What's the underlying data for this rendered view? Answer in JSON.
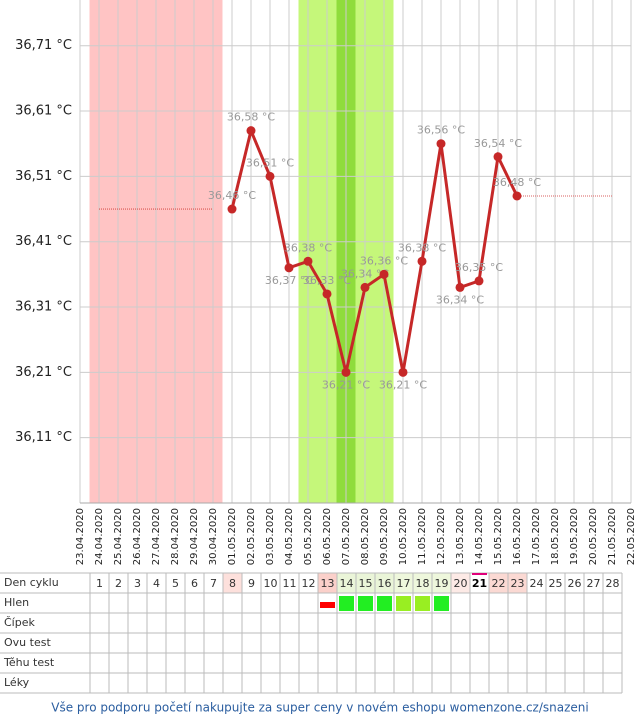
{
  "chart_data": {
    "type": "line",
    "x": [
      "23.04.2020",
      "24.04.2020",
      "25.04.2020",
      "26.04.2020",
      "27.04.2020",
      "28.04.2020",
      "29.04.2020",
      "30.04.2020",
      "01.05.2020",
      "02.05.2020",
      "03.05.2020",
      "04.05.2020",
      "05.05.2020",
      "06.05.2020",
      "07.05.2020",
      "08.05.2020",
      "09.05.2020",
      "10.05.2020",
      "11.05.2020",
      "12.05.2020",
      "13.05.2020",
      "14.05.2020",
      "15.05.2020",
      "16.05.2020",
      "17.05.2020",
      "18.05.2020",
      "19.05.2020",
      "20.05.2020",
      "21.05.2020",
      "22.05.2020"
    ],
    "series": [
      {
        "color": "#c62828",
        "values": [
          null,
          null,
          null,
          null,
          null,
          null,
          null,
          null,
          36.46,
          36.58,
          36.51,
          36.37,
          36.38,
          36.33,
          36.21,
          36.34,
          36.36,
          36.21,
          36.38,
          36.56,
          36.34,
          36.35,
          36.54,
          36.48,
          null,
          null,
          null,
          null,
          null,
          null
        ],
        "value_labels": [
          null,
          null,
          null,
          null,
          null,
          null,
          null,
          null,
          "36,46 °C",
          "36,58 °C",
          "36,51 °C",
          "36,37 °C",
          "36,38 °C",
          "36,33 °C",
          "36,21 °C",
          "36,34 °C",
          "36,36 °C",
          "36,21 °C",
          "36,38 °C",
          "36,56 °C",
          "36,34 °C",
          "36,35 °C",
          "36,54 °C",
          "36,48 °C",
          null,
          null,
          null,
          null,
          null,
          null
        ]
      },
      {
        "color": "#d9534f",
        "values": [
          null,
          36.46,
          36.46,
          36.46,
          36.46,
          36.46,
          36.46,
          36.46,
          null,
          null,
          null,
          null,
          null,
          null,
          null,
          null,
          null,
          null,
          null,
          null,
          null,
          null,
          null,
          null,
          null,
          null,
          null,
          null,
          null,
          null
        ]
      },
      {
        "color": "#e08080",
        "values": [
          null,
          null,
          null,
          null,
          null,
          null,
          null,
          null,
          null,
          null,
          null,
          null,
          null,
          null,
          null,
          null,
          null,
          null,
          null,
          null,
          null,
          null,
          null,
          36.48,
          36.48,
          36.48,
          36.48,
          36.48,
          36.48,
          null
        ]
      }
    ],
    "bands": [
      {
        "from": "24.04.2020",
        "to": "30.04.2020",
        "color": "#ffc4c4"
      },
      {
        "from": "05.05.2020",
        "to": "09.05.2020",
        "color": "#c5f77a"
      },
      {
        "from": "07.05.2020",
        "to": "07.05.2020",
        "color": "#8fdc3c"
      }
    ],
    "ylim": [
      36.01,
      36.78
    ],
    "yticks": [
      {
        "value": 36.11,
        "label": "36,11 °C"
      },
      {
        "value": 36.21,
        "label": "36,21 °C"
      },
      {
        "value": 36.31,
        "label": "36,31 °C"
      },
      {
        "value": 36.41,
        "label": "36,41 °C"
      },
      {
        "value": 36.51,
        "label": "36,51 °C"
      },
      {
        "value": 36.61,
        "label": "36,61 °C"
      },
      {
        "value": 36.71,
        "label": "36,71 °C"
      }
    ],
    "grid": true
  },
  "table": {
    "row_labels": [
      "Den cyklu",
      "Hlen",
      "Čípek",
      "Ovu test",
      "Těhu test",
      "Léky"
    ],
    "days": [
      1,
      2,
      3,
      4,
      5,
      6,
      7,
      8,
      9,
      10,
      11,
      12,
      13,
      14,
      15,
      16,
      17,
      18,
      19,
      20,
      21,
      22,
      23,
      24,
      25,
      26,
      27,
      28
    ],
    "day_shade": [
      null,
      null,
      null,
      null,
      null,
      null,
      null,
      "#fde0dc",
      null,
      null,
      null,
      null,
      "#fbd0ca",
      "#eaf5d8",
      "#eaf5d8",
      "#eaf5d8",
      "#eef7dc",
      "#eef7dc",
      "#eef7dc",
      "#fdeae6",
      null,
      "#fbd9d3",
      "#fbd9d3",
      null,
      null,
      null,
      null,
      null
    ],
    "current_day": 21,
    "hlen": [
      null,
      null,
      null,
      null,
      null,
      null,
      null,
      null,
      null,
      null,
      null,
      null,
      {
        "color": "#ff0000",
        "shape": "bar"
      },
      {
        "color": "#22ee22",
        "shape": "square"
      },
      {
        "color": "#22ee22",
        "shape": "square"
      },
      {
        "color": "#22ee22",
        "shape": "square"
      },
      {
        "color": "#99ee22",
        "shape": "square"
      },
      {
        "color": "#99ee22",
        "shape": "square"
      },
      {
        "color": "#22ee22",
        "shape": "square"
      },
      null,
      null,
      null,
      null,
      null,
      null,
      null,
      null,
      null
    ]
  },
  "footer": "Vše pro podporu početí nakupujte za super ceny v novém eshopu womenzone.cz/snazeni"
}
